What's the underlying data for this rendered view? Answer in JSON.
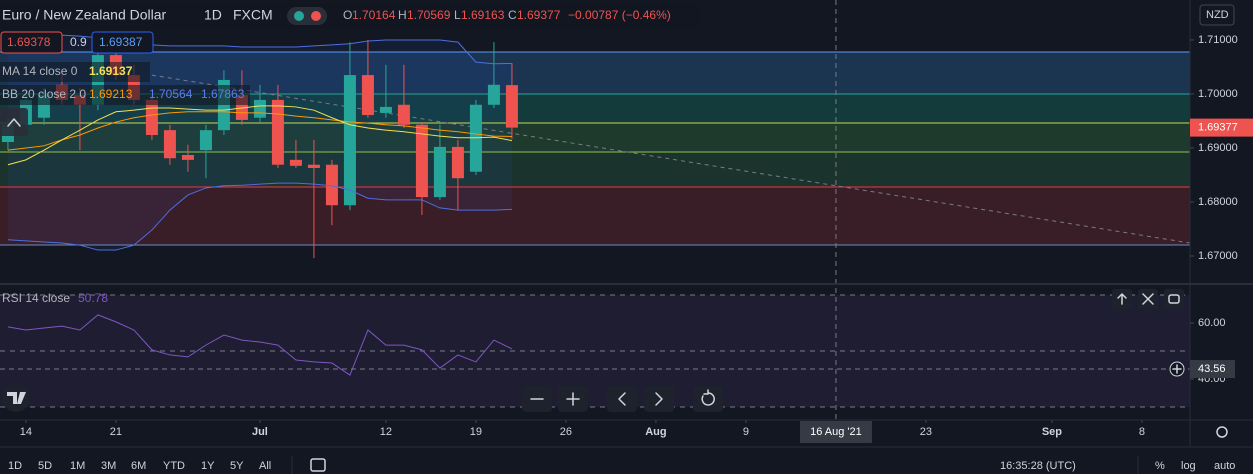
{
  "chart_data": [
    {
      "type": "candlestick",
      "title": "Euro / New Zealand Dollar",
      "interval": "1D",
      "source": "FXCM",
      "ohlc_labels": [
        "O",
        "H",
        "L",
        "C"
      ],
      "change": "−0.00787 (−0.46%)",
      "up_color": "#26a69a",
      "down_color": "#ef5350",
      "open": [
        1.6911,
        1.6943,
        1.6956,
        1.7017,
        1.6998,
        1.698,
        1.7072,
        1.7035,
        1.6989,
        1.6933,
        1.6887,
        1.6896,
        1.6933,
        1.6998,
        1.6956,
        1.6989,
        1.6878,
        1.6869,
        1.6869,
        1.6794,
        1.7035,
        1.6965,
        1.698,
        1.6943,
        1.6809,
        1.6902,
        1.6856,
        1.698,
        1.70164
      ],
      "high": [
        1.6956,
        1.7007,
        1.7011,
        1.7035,
        1.7011,
        1.7091,
        1.71,
        1.7054,
        1.6998,
        1.6943,
        1.6906,
        1.6943,
        1.7044,
        1.7044,
        1.7017,
        1.7017,
        1.6915,
        1.6915,
        1.6878,
        1.7096,
        1.71,
        1.7054,
        1.7054,
        1.6948,
        1.6943,
        1.6915,
        1.6989,
        1.7096,
        1.70569
      ],
      "low": [
        1.6896,
        1.6933,
        1.6943,
        1.698,
        1.6896,
        1.697,
        1.7026,
        1.698,
        1.6915,
        1.6869,
        1.6856,
        1.6844,
        1.6924,
        1.6943,
        1.6948,
        1.6863,
        1.6863,
        1.6696,
        1.6757,
        1.6785,
        1.6956,
        1.6956,
        1.6937,
        1.6776,
        1.6804,
        1.6785,
        1.685,
        1.6974,
        1.69163
      ],
      "close": [
        1.6943,
        1.6989,
        1.6998,
        1.6989,
        1.698,
        1.7072,
        1.7035,
        1.6989,
        1.6924,
        1.6881,
        1.6878,
        1.6933,
        1.7026,
        1.6952,
        1.6989,
        1.6869,
        1.6867,
        1.6863,
        1.6794,
        1.7035,
        1.6961,
        1.6976,
        1.6943,
        1.6809,
        1.6902,
        1.6844,
        1.698,
        1.7017,
        1.69377
      ],
      "ma": {
        "name": "MA 14 close 0",
        "color": "#f5e050",
        "values": [
          1.6869,
          1.6878,
          1.6896,
          1.6915,
          1.6933,
          1.6952,
          1.6967,
          1.697,
          1.6974,
          1.6974,
          1.6972,
          1.697,
          1.697,
          1.6974,
          1.6978,
          1.6978,
          1.6976,
          1.697,
          1.6956,
          1.6943,
          1.6937,
          1.6933,
          1.693,
          1.6926,
          1.6922,
          1.6919,
          1.6919,
          1.692,
          1.69137
        ]
      },
      "bb": {
        "name": "BB 20 close 2 0",
        "basis": {
          "color": "#ff9800",
          "values": [
            1.6896,
            1.69,
            1.6904,
            1.6915,
            1.6924,
            1.6937,
            1.6948,
            1.6956,
            1.6961,
            1.6965,
            1.6967,
            1.6967,
            1.6967,
            1.6965,
            1.6965,
            1.6963,
            1.6959,
            1.6956,
            1.6952,
            1.6948,
            1.6946,
            1.6943,
            1.6941,
            1.6937,
            1.6933,
            1.693,
            1.6926,
            1.6922,
            1.69213
          ]
        },
        "upper": {
          "color": "#4e6fe0",
          "values": [
            1.71,
            1.7104,
            1.7107,
            1.7109,
            1.7107,
            1.7104,
            1.71,
            1.7096,
            1.7091,
            1.7089,
            1.7089,
            1.7089,
            1.7089,
            1.7087,
            1.7087,
            1.7087,
            1.7087,
            1.7089,
            1.7091,
            1.7093,
            1.7098,
            1.71,
            1.71,
            1.71,
            1.71,
            1.7096,
            1.7059,
            1.7056,
            1.70564
          ]
        },
        "lower": {
          "color": "#4e6fe0",
          "values": [
            1.673,
            1.6728,
            1.6726,
            1.6724,
            1.672,
            1.6711,
            1.6711,
            1.672,
            1.6748,
            1.6785,
            1.6813,
            1.6826,
            1.683,
            1.6831,
            1.6833,
            1.6835,
            1.6835,
            1.6833,
            1.683,
            1.6822,
            1.6807,
            1.6804,
            1.6804,
            1.6804,
            1.6789,
            1.6785,
            1.6785,
            1.6785,
            1.67863
          ]
        }
      },
      "levels": {
        "values": [
          1.70778,
          1.7,
          1.69463,
          1.68926,
          1.68278,
          1.67204
        ],
        "colors": [
          "#5b9cf6",
          "#26a69a",
          "#c8d94a",
          "#8bc34a",
          "#f23645",
          "#6a8fc0"
        ],
        "fills": [
          "#1b3450",
          "#143b3c",
          "#1e3a2d",
          "#1b332d",
          "#3a1e27"
        ]
      },
      "trendline": {
        "x": [
          8,
          65.67
        ],
        "y": [
          1.7035,
          1.6724
        ],
        "color": "#787b86"
      },
      "xlim": [
        -0.44,
        65.67
      ],
      "xticks": [
        {
          "value": 1,
          "label": "14"
        },
        {
          "value": 6,
          "label": "21"
        },
        {
          "value": 14,
          "label": "Jul"
        },
        {
          "value": 21,
          "label": "12"
        },
        {
          "value": 26,
          "label": "19"
        },
        {
          "value": 31,
          "label": "26"
        },
        {
          "value": 36,
          "label": "Aug"
        },
        {
          "value": 41,
          "label": "9"
        },
        {
          "value": 51,
          "label": "23"
        },
        {
          "value": 58,
          "label": "Sep"
        },
        {
          "value": 63,
          "label": "8"
        }
      ],
      "ylim": [
        1.665,
        1.7174
      ],
      "yticks": [
        {
          "value": 1.71,
          "label": "1.71000"
        },
        {
          "value": 1.7,
          "label": "1.70000"
        },
        {
          "value": 1.69,
          "label": "1.69000"
        },
        {
          "value": 1.68,
          "label": "1.68000"
        },
        {
          "value": 1.67,
          "label": "1.67000"
        }
      ],
      "grid": false
    },
    {
      "type": "line",
      "title": "RSI 14 close",
      "color": "#7e57c2",
      "values": [
        58.6,
        57.5,
        58.2,
        58.9,
        57.5,
        62.9,
        60.4,
        57.5,
        50.4,
        48.6,
        47.9,
        52.1,
        55.7,
        53.9,
        53.2,
        52.1,
        46.8,
        46.1,
        45.7,
        41.4,
        57.5,
        52.1,
        52.1,
        50.4,
        43.9,
        48.6,
        46.1,
        53.9,
        50.78
      ],
      "ylim": [
        25.36,
        73.57
      ],
      "yticks": [
        {
          "value": 60,
          "label": "60.00"
        },
        {
          "value": 40,
          "label": "40.00"
        }
      ],
      "levels": [
        70,
        50,
        30
      ],
      "crosshair": {
        "x": {
          "value": 46,
          "label": "16 Aug '21"
        },
        "y": 43.56
      }
    }
  ],
  "ui": {
    "sell": "1.69378",
    "spread": "0.9",
    "buy": "1.69387",
    "currency": "NZD",
    "ranges": [
      "1D",
      "5D",
      "1M",
      "3M",
      "6M",
      "YTD",
      "1Y",
      "5Y",
      "All"
    ],
    "time": "16:35:28 (UTC)",
    "options": [
      "%",
      "log",
      "auto"
    ]
  }
}
